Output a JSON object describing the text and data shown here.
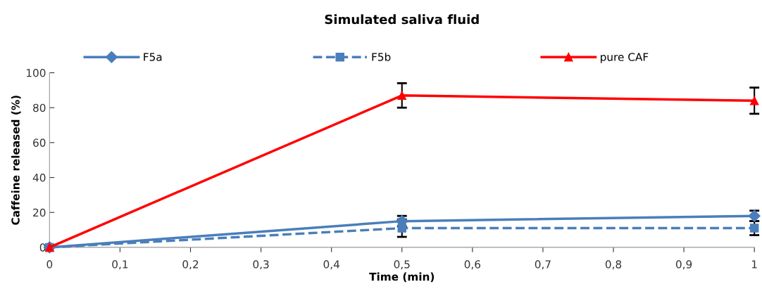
{
  "chart_data": {
    "type": "line",
    "title": "Simulated saliva fluid",
    "xlabel": "Time (min)",
    "ylabel": "Caffeine released (%)",
    "x": [
      0,
      0.5,
      1
    ],
    "series": [
      {
        "name": "F5a",
        "color": "#4a7ebb",
        "values": [
          0,
          15,
          18
        ],
        "errors": [
          null,
          3,
          3
        ],
        "marker": "diamond",
        "line_style": "solid"
      },
      {
        "name": "F5b",
        "color": "#4a7ebb",
        "values": [
          0,
          11,
          11
        ],
        "errors": [
          null,
          5,
          4
        ],
        "marker": "square",
        "line_style": "dashed"
      },
      {
        "name": "pure CAF",
        "color": "#ff0000",
        "values": [
          0,
          87,
          84
        ],
        "errors": [
          null,
          7,
          7.5
        ],
        "marker": "triangle",
        "line_style": "solid"
      }
    ],
    "xlim": [
      0,
      1
    ],
    "ylim": [
      0,
      100
    ],
    "xticks": [
      {
        "value": 0,
        "label": "0"
      },
      {
        "value": 0.1,
        "label": "0,1"
      },
      {
        "value": 0.2,
        "label": "0,2"
      },
      {
        "value": 0.3,
        "label": "0,3"
      },
      {
        "value": 0.4,
        "label": "0,4"
      },
      {
        "value": 0.5,
        "label": "0,5"
      },
      {
        "value": 0.6,
        "label": "0,6"
      },
      {
        "value": 0.7,
        "label": "0,7"
      },
      {
        "value": 0.8,
        "label": "0,8"
      },
      {
        "value": 0.9,
        "label": "0,9"
      },
      {
        "value": 1,
        "label": "1"
      }
    ],
    "yticks": [
      0,
      20,
      40,
      60,
      80,
      100
    ],
    "grid": false,
    "legend": "top"
  }
}
